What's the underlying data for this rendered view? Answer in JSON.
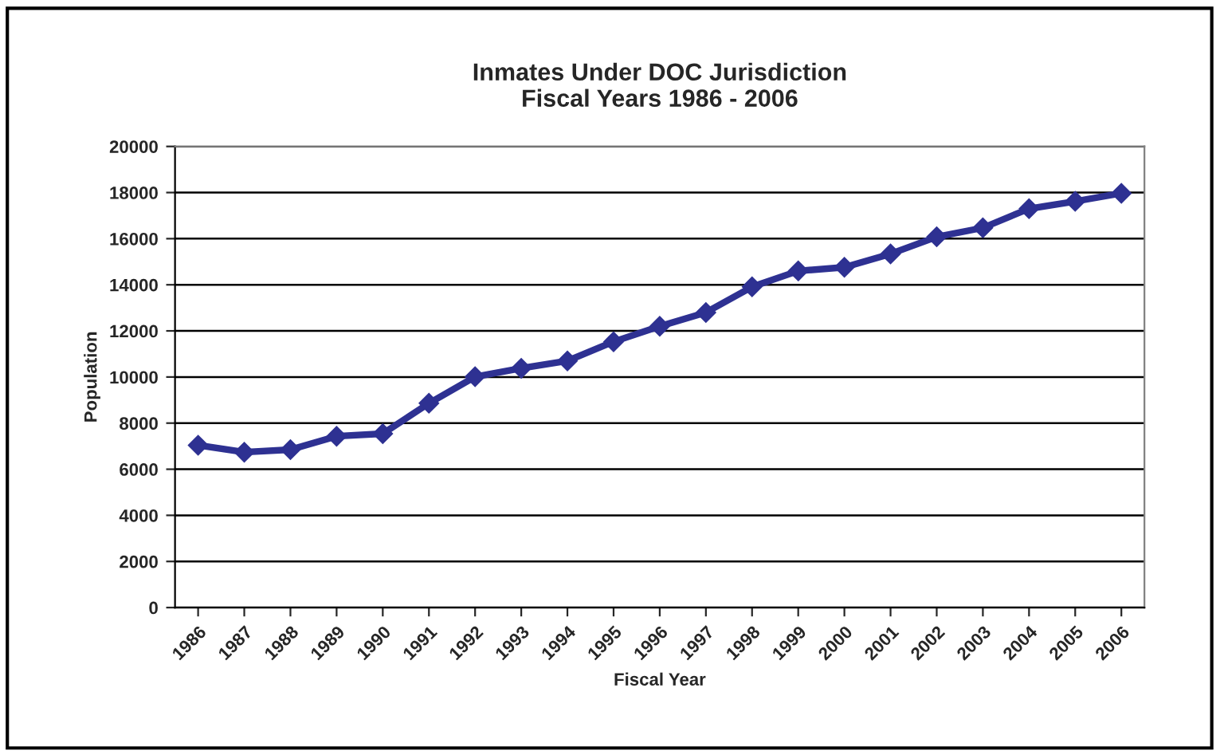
{
  "chart_data": {
    "type": "line",
    "title": "Inmates Under DOC Jurisdiction\nFiscal Years 1986 - 2006",
    "xlabel": "Fiscal Year",
    "ylabel": "Population",
    "categories": [
      "1986",
      "1987",
      "1988",
      "1989",
      "1990",
      "1991",
      "1992",
      "1993",
      "1994",
      "1995",
      "1996",
      "1997",
      "1998",
      "1999",
      "2000",
      "2001",
      "2002",
      "2003",
      "2004",
      "2005",
      "2006"
    ],
    "series": [
      {
        "color": "#2e3192",
        "values": [
          7040,
          6740,
          6850,
          7430,
          7540,
          8860,
          10010,
          10380,
          10700,
          11530,
          12200,
          12800,
          13910,
          14600,
          14760,
          15340,
          16080,
          16470,
          17300,
          17620,
          17970
        ]
      }
    ],
    "ylim": [
      0,
      20000
    ],
    "yticks": [
      0,
      2000,
      4000,
      6000,
      8000,
      10000,
      12000,
      14000,
      16000,
      18000,
      20000
    ],
    "grid": "y",
    "legend": false,
    "marker": "diamond",
    "line_style": "solid"
  }
}
